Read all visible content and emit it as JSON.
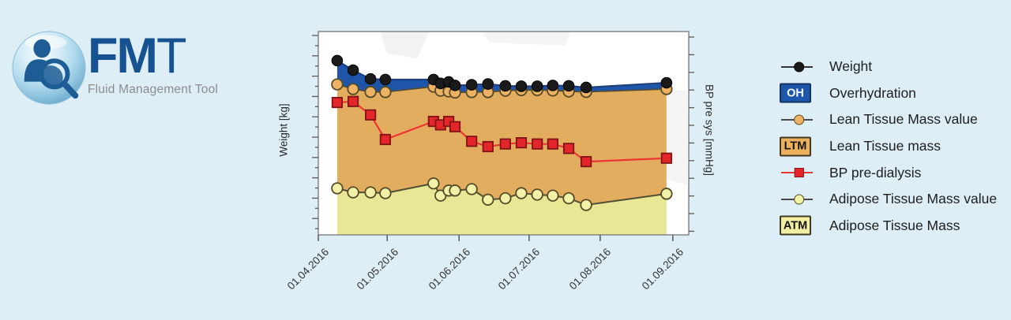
{
  "brand": {
    "title_bold": "FM",
    "title_light": "T",
    "subtitle": "Fluid Management Tool"
  },
  "chart_data": {
    "type": "area",
    "description": "Stacked body-composition areas with weight and blood-pressure lines over time",
    "x_axis": {
      "tick_labels": [
        "01.04.2016",
        "01.05.2016",
        "01.06.2016",
        "01.07.2016",
        "01.08.2016",
        "01.09.2016"
      ],
      "tick_pct": [
        0,
        18.6,
        38.0,
        56.9,
        76.1,
        95.7
      ]
    },
    "y_axis_left": {
      "label": "Weight [kg]",
      "numeric_tick_labels_shown": false
    },
    "y_axis_right": {
      "label": "BP pre sys [mmHg]",
      "numeric_tick_labels_shown": false
    },
    "x_pct": [
      5.1,
      9.4,
      14.1,
      18.1,
      31.1,
      33.0,
      35.2,
      36.9,
      41.4,
      45.8,
      50.5,
      54.8,
      59.1,
      63.3,
      67.6,
      72.3,
      94.0
    ],
    "dates_estimated": [
      "10.04.2016",
      "17.04.2016",
      "25.04.2016",
      "01.05.2016",
      "21.05.2016",
      "24.05.2016",
      "28.05.2016",
      "30.05.2016",
      "06.06.2016",
      "14.06.2016",
      "21.06.2016",
      "28.06.2016",
      "04.07.2016",
      "11.07.2016",
      "18.07.2016",
      "25.07.2016",
      "29.08.2016"
    ],
    "y_unit_note": "y values are percent of plot height from top (axes show no numbers)",
    "series": [
      {
        "id": "weight",
        "name": "Weight",
        "type": "line",
        "marker": "circle",
        "color": "#1a1a1a",
        "marker_border": "#000000",
        "line_color": "#1d3c78",
        "y_pct": [
          14.3,
          19.0,
          23.3,
          23.6,
          23.6,
          25.5,
          24.8,
          26.5,
          26.2,
          25.8,
          26.7,
          26.9,
          26.9,
          26.5,
          26.7,
          27.5,
          25.2
        ]
      },
      {
        "id": "overhydration",
        "name": "Overhydration",
        "type": "area_band",
        "between": [
          "weight",
          "ltm_value"
        ],
        "fill": "#1f55a9"
      },
      {
        "id": "ltm_value",
        "name": "Lean Tissue Mass value",
        "type": "line",
        "marker": "circle",
        "color": "#edb264",
        "marker_border": "#564b29",
        "line_color": "#564b29",
        "y_pct": [
          26.0,
          28.3,
          29.7,
          29.8,
          27.1,
          29.1,
          29.5,
          30.0,
          29.8,
          29.8,
          29.1,
          28.8,
          28.8,
          29.0,
          29.5,
          29.7,
          28.3
        ]
      },
      {
        "id": "ltm_area",
        "name": "Lean Tissue mass",
        "type": "area_band",
        "between": [
          "ltm_value",
          "atm_value"
        ],
        "fill": "#e3ad60"
      },
      {
        "id": "bp",
        "name": "BP pre-dialysis",
        "type": "line",
        "marker": "square",
        "color": "#e4252a",
        "marker_border": "#7e1416",
        "line_color": "#ee3630",
        "y_pct": [
          34.9,
          34.4,
          41.0,
          53.1,
          44.2,
          45.9,
          44.2,
          46.8,
          54.0,
          56.6,
          55.3,
          54.7,
          55.3,
          55.3,
          57.5,
          64.0,
          62.3
        ]
      },
      {
        "id": "atm_value",
        "name": "Adipose Tissue Mass value",
        "type": "line",
        "marker": "circle",
        "color": "#f2f1a8",
        "marker_border": "#564b29",
        "line_color": "#4f4f35",
        "y_pct": [
          77.1,
          79.1,
          79.1,
          79.5,
          74.7,
          80.7,
          78.2,
          78.2,
          77.5,
          82.7,
          82.0,
          79.5,
          80.2,
          80.7,
          82.0,
          85.3,
          79.8
        ]
      },
      {
        "id": "atm_area",
        "name": "Adipose Tissue Mass",
        "type": "area_to_baseline",
        "above": "atm_value",
        "fill": "#e8e795"
      }
    ]
  },
  "legend": {
    "items": [
      {
        "id": "weight",
        "label": "Weight",
        "marker": "line-dot",
        "color": "#1a1a1a",
        "border": "#000000",
        "line": "#333333"
      },
      {
        "id": "overhydration",
        "label": "Overhydration",
        "marker": "box",
        "box_text": "OH",
        "color": "#1d57ab",
        "border": "#14315f",
        "text_color": "#ffffff"
      },
      {
        "id": "ltm-value",
        "label": "Lean Tissue Mass value",
        "marker": "line-dot",
        "color": "#edb264",
        "border": "#564b29",
        "line": "#4a4a4a"
      },
      {
        "id": "ltm",
        "label": "Lean Tissue mass",
        "marker": "box",
        "box_text": "LTM",
        "color": "#edb05c",
        "border": "#3f3823",
        "text_color": "#141414"
      },
      {
        "id": "bp-pre-dialysis",
        "label": "BP pre-dialysis",
        "marker": "line-square",
        "color": "#e4252a",
        "border": "#7e1416",
        "line": "#ee3630"
      },
      {
        "id": "atm-value",
        "label": "Adipose Tissue Mass value",
        "marker": "line-dot",
        "color": "#f2f1a8",
        "border": "#564b29",
        "line": "#4a4a4a"
      },
      {
        "id": "atm",
        "label": "Adipose Tissue Mass",
        "marker": "box",
        "box_text": "ATM",
        "color": "#f2efa2",
        "border": "#3f3823",
        "text_color": "#141414"
      }
    ]
  }
}
